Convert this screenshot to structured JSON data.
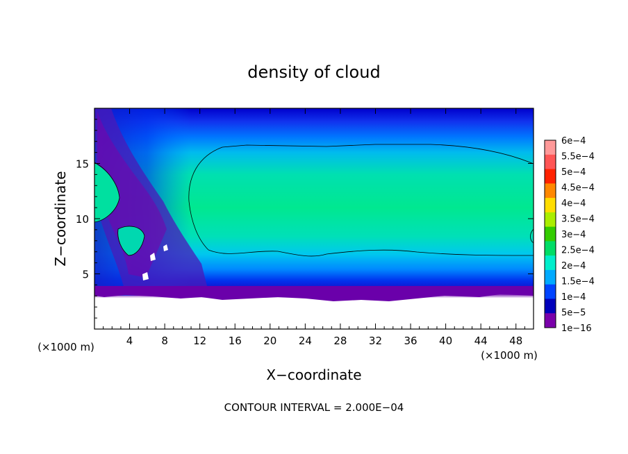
{
  "chart_data": {
    "type": "heatmap",
    "title": "density of cloud",
    "xlabel": "X−coordinate",
    "ylabel": "Z−coordinate",
    "x_unit_left": "(×1000 m)",
    "x_unit_right": "(×1000 m)",
    "xlim": [
      0,
      50
    ],
    "ylim": [
      0,
      20
    ],
    "x_ticks": [
      4,
      8,
      12,
      16,
      20,
      24,
      28,
      32,
      36,
      40,
      44,
      48
    ],
    "y_ticks": [
      5,
      10,
      15
    ],
    "x_tick_labels": [
      "4",
      "8",
      "12",
      "16",
      "20",
      "24",
      "28",
      "32",
      "36",
      "40",
      "44",
      "48"
    ],
    "y_tick_labels": [
      "5",
      "10",
      "15"
    ],
    "colorbar": {
      "labels": [
        "6e−4",
        "5.5e−4",
        "5e−4",
        "4.5e−4",
        "4e−4",
        "3.5e−4",
        "3e−4",
        "2.5e−4",
        "2e−4",
        "1.5e−4",
        "1e−4",
        "5e−5",
        "1e−16"
      ],
      "values": [
        0.0006,
        0.00055,
        0.0005,
        0.00045,
        0.0004,
        0.00035,
        0.0003,
        0.00025,
        0.0002,
        0.00015,
        0.0001,
        5e-05,
        1e-16
      ],
      "colors": [
        "#ff9999",
        "#ff5555",
        "#ff2200",
        "#ff8800",
        "#ffdd00",
        "#aaee00",
        "#33cc00",
        "#00dd66",
        "#00eecc",
        "#00aaff",
        "#0044ff",
        "#0000bb",
        "#7a00aa"
      ]
    },
    "footer": "CONTOUR INTERVAL = 2.000E−04"
  }
}
